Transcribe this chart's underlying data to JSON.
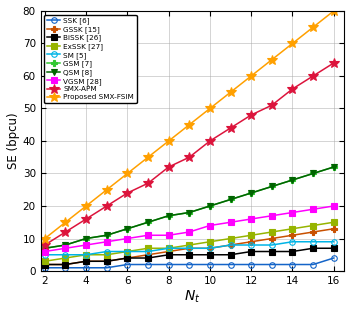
{
  "x_all": [
    2,
    3,
    4,
    5,
    6,
    7,
    8,
    9,
    10,
    11,
    12,
    13,
    14,
    15,
    16
  ],
  "x_even": [
    2,
    4,
    6,
    8,
    10,
    12,
    14,
    16
  ],
  "SSK": [
    1,
    1,
    1,
    1,
    2,
    2,
    2,
    2,
    2,
    2,
    2,
    2,
    2,
    2,
    4
  ],
  "GSSK": [
    2,
    2,
    3,
    3,
    4,
    5,
    6,
    7,
    7,
    8,
    9,
    10,
    11,
    12,
    13
  ],
  "BiSSK": [
    2,
    2,
    3,
    3,
    4,
    4,
    5,
    5,
    5,
    5,
    6,
    6,
    6,
    7,
    7
  ],
  "ExSSK": [
    3,
    4,
    5,
    5,
    6,
    7,
    7,
    8,
    9,
    10,
    11,
    12,
    13,
    14,
    15
  ],
  "SM": [
    5,
    5,
    5,
    6,
    6,
    6,
    7,
    7,
    7,
    8,
    8,
    8,
    9,
    9,
    9
  ],
  "GSM": [
    7,
    8,
    10,
    11,
    13,
    15,
    17,
    18,
    20,
    22,
    24,
    26,
    28,
    30,
    32
  ],
  "QSM": [
    7,
    8,
    10,
    11,
    13,
    15,
    17,
    18,
    20,
    22,
    24,
    26,
    28,
    30,
    32
  ],
  "VGSM_x": [
    2,
    3,
    4,
    5,
    6,
    7,
    8,
    9,
    10,
    11,
    12,
    13,
    14,
    15,
    16
  ],
  "VGSM": [
    6,
    7,
    8,
    9,
    10,
    11,
    11,
    12,
    14,
    15,
    16,
    17,
    18,
    19,
    20
  ],
  "SMX_APM_x": [
    2,
    3,
    4,
    5,
    6,
    7,
    8,
    9,
    10,
    11,
    12,
    13,
    14,
    15,
    16
  ],
  "SMX_APM": [
    8,
    12,
    16,
    20,
    24,
    27,
    32,
    35,
    40,
    44,
    48,
    51,
    56,
    60,
    64
  ],
  "SMX_FSIM_x": [
    2,
    3,
    4,
    5,
    6,
    7,
    8,
    9,
    10,
    11,
    12,
    13,
    14,
    15,
    16
  ],
  "SMX_FSIM": [
    10,
    15,
    20,
    25,
    30,
    35,
    40,
    45,
    50,
    55,
    60,
    65,
    70,
    75,
    80
  ],
  "colors": {
    "SSK": "#1464c8",
    "GSSK": "#c85000",
    "BiSSK": "#000000",
    "ExSSK": "#96b400",
    "SM": "#00b4e6",
    "GSM": "#32c832",
    "QSM": "#006400",
    "VGSM": "#ff00ff",
    "SMX_APM": "#dc143c",
    "SMX_FSIM": "#ffa000"
  },
  "markers": {
    "SSK": "o",
    "GSSK": "P",
    "BiSSK": "s",
    "ExSSK": "s",
    "SM": "o",
    "GSM": "P",
    "QSM": "v",
    "VGSM": "s",
    "SMX_APM": "*",
    "SMX_FSIM": "*"
  },
  "labels": {
    "SSK": "SSK [6]",
    "GSSK": "GSSK [15]",
    "BiSSK": "BiSSK [26]",
    "ExSSK": "ExSSK [27]",
    "SM": "SM [5]",
    "GSM": "GSM [7]",
    "QSM": "QSM [8]",
    "VGSM": "VGSM [28]",
    "SMX_APM": "SMX-APM",
    "SMX_FSIM": "Proposed SMX-FSIM"
  },
  "xlim": [
    1.8,
    16.5
  ],
  "ylim": [
    0,
    80
  ],
  "xlabel": "$N_t$",
  "ylabel": "SE (bpcu)",
  "xticks": [
    2,
    4,
    6,
    8,
    10,
    12,
    14,
    16
  ],
  "yticks": [
    0,
    10,
    20,
    30,
    40,
    50,
    60,
    70,
    80
  ]
}
